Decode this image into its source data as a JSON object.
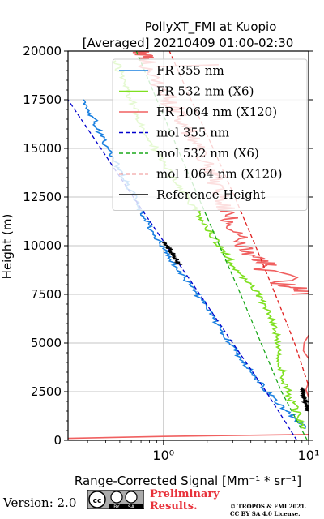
{
  "chart_data": {
    "type": "line",
    "title": "PollyXT_FMI at Kuopio",
    "subtitle": "[Averaged] 20210409 01:00-02:30",
    "xlabel": "Range-Corrected Signal [Mm⁻¹ * sr⁻¹]",
    "ylabel": "Height (m)",
    "xscale": "log",
    "xlim": [
      0.22,
      10
    ],
    "ylim": [
      0,
      20000
    ],
    "xticks": [
      {
        "value": 1,
        "label": "10⁰"
      },
      {
        "value": 10,
        "label": "10¹"
      }
    ],
    "yticks": [
      0,
      2500,
      5000,
      7500,
      10000,
      12500,
      15000,
      17500,
      20000
    ],
    "ytick_labels": [
      "0",
      "2500",
      "5000",
      "7500",
      "10000",
      "12500",
      "15000",
      "17500",
      "20000"
    ],
    "grid": true,
    "legend_position": "top-right",
    "series": [
      {
        "name": "FR 355 nm",
        "color": "#1a80e0",
        "style": "solid",
        "noise": 0.025,
        "y": [
          600,
          1500,
          2500,
          3500,
          4500,
          5500,
          6500,
          7500,
          8500,
          9500,
          10500,
          11500,
          12500,
          13500,
          14500,
          15500,
          16500,
          17500
        ],
        "x": [
          9.8,
          7.0,
          5.2,
          4.1,
          3.2,
          2.6,
          2.1,
          1.7,
          1.35,
          1.08,
          0.88,
          0.74,
          0.63,
          0.53,
          0.45,
          0.38,
          0.33,
          0.28
        ]
      },
      {
        "name": "FR 532 nm (X6)",
        "color": "#7fe020",
        "style": "solid",
        "noise": 0.03,
        "y": [
          600,
          1500,
          2500,
          3500,
          4500,
          5500,
          6500,
          7500,
          8500,
          9500,
          10500,
          11500,
          12500,
          13500,
          14500,
          15500,
          16500,
          17500,
          18500,
          19500
        ],
        "x": [
          9.5,
          8.2,
          7.2,
          6.6,
          6.2,
          6.0,
          5.5,
          4.5,
          3.4,
          2.7,
          2.2,
          1.8,
          1.45,
          1.15,
          0.95,
          0.8,
          0.68,
          0.6,
          0.52,
          0.47
        ]
      },
      {
        "name": "FR 1064 nm (X120)",
        "color": "#f06060",
        "style": "solid",
        "noise": 0.08,
        "y": [
          9000,
          9500,
          10500,
          11500,
          12500,
          13500,
          14500,
          15500,
          16500,
          17500,
          18500,
          19500,
          20000
        ],
        "x": [
          5.5,
          4.0,
          3.3,
          2.8,
          2.5,
          2.2,
          1.9,
          1.6,
          1.3,
          1.1,
          0.9,
          0.75,
          0.7
        ]
      },
      {
        "name": "mol 355 nm",
        "color": "#0000cd",
        "style": "dashed",
        "y": [
          0,
          2500,
          5000,
          7500,
          10000,
          12500,
          15000,
          17500
        ],
        "x": [
          8.3,
          5.1,
          3.0,
          1.78,
          1.05,
          0.62,
          0.37,
          0.22
        ]
      },
      {
        "name": "mol 532 nm (X6)",
        "color": "#1aa81a",
        "style": "dashed",
        "y": [
          0,
          2500,
          5000,
          7500,
          10000,
          12500,
          15000,
          17500,
          20000
        ],
        "x": [
          9.8,
          6.5,
          4.7,
          3.4,
          2.43,
          1.74,
          1.25,
          0.9,
          0.65
        ]
      },
      {
        "name": "mol 1064 nm (X120)",
        "color": "#e02020",
        "style": "dashed",
        "y": [
          0,
          2500,
          5000,
          7500,
          10000,
          12500,
          15000,
          17500,
          20000
        ],
        "x": [
          12,
          10.3,
          8.0,
          5.9,
          4.3,
          3.1,
          2.2,
          1.55,
          1.1
        ]
      },
      {
        "name": "Reference Height",
        "color": "#000000",
        "style": "solid",
        "noise": 0.02,
        "y": [
          9000,
          9300,
          9600,
          9900,
          10200
        ],
        "x": [
          1.3,
          1.22,
          1.15,
          1.08,
          1.0
        ]
      }
    ],
    "extra_segments": [
      {
        "color": "#000000",
        "style": "solid",
        "noise": 0.02,
        "y": [
          1500,
          1800,
          2100,
          2400,
          2700
        ],
        "x": [
          9.9,
          9.7,
          9.4,
          9.2,
          9.1
        ]
      },
      {
        "color": "#f06060",
        "style": "solid",
        "noise": 0.0,
        "y": [
          100,
          200,
          300
        ],
        "x": [
          0.22,
          1.0,
          10
        ]
      },
      {
        "color": "#f06060",
        "style": "solid",
        "noise": 0.15,
        "y": [
          7500,
          8000,
          9000
        ],
        "x": [
          10,
          7.0,
          5.2
        ]
      },
      {
        "color": "#f06060",
        "style": "solid",
        "noise": 0.0,
        "y": [
          4200,
          4600,
          5000,
          5400
        ],
        "x": [
          10,
          9.2,
          9.3,
          10
        ]
      },
      {
        "color": "#f06060",
        "style": "solid",
        "noise": 0.0,
        "y": [
          2200,
          2600,
          3000
        ],
        "x": [
          10,
          9.6,
          10
        ]
      },
      {
        "color": "#f06060",
        "style": "solid",
        "noise": 0.0,
        "y": [
          19200,
          19300
        ],
        "x": [
          0.9,
          2.4
        ]
      }
    ]
  },
  "footer": {
    "version": "Version: 2.0",
    "cc_badge": "cc BY SA",
    "cc_badge_lines": [
      "cc",
      "BY",
      "SA"
    ],
    "preliminary": "Preliminary Results.",
    "copyright_line1": "© TROPOS & FMI 2021.",
    "copyright_line2": "CC BY SA 4.0 License."
  }
}
